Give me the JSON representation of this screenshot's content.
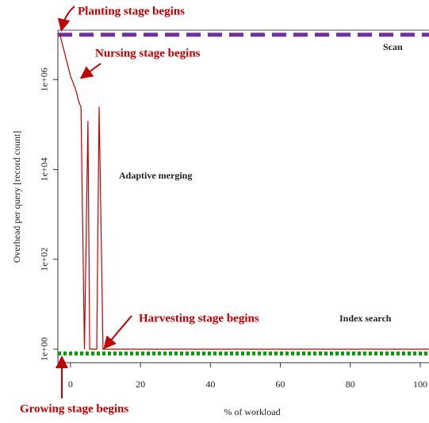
{
  "chart_data": {
    "type": "line",
    "y_label": "Overhead per query [record count]",
    "x_label": "% of workload",
    "log_y": true,
    "xlim": [
      -3.6,
      102.5
    ],
    "ylim": [
      0.5,
      12600000
    ],
    "xticks": [
      0,
      20,
      40,
      60,
      80,
      100
    ],
    "yticks": [
      {
        "value": 1,
        "label": "1e+00"
      },
      {
        "value": 100,
        "label": "1e+02"
      },
      {
        "value": 10000,
        "label": "1e+04"
      },
      {
        "value": 1000000,
        "label": "1e+06"
      }
    ],
    "series": [
      {
        "name": "Scan",
        "color": "#7030a0",
        "dash": "dashed",
        "x": [
          -3.6,
          102.5
        ],
        "values": [
          10000000,
          10000000
        ]
      },
      {
        "name": "Index search",
        "color": "#00a000",
        "dash": "dotted",
        "x": [
          -3.6,
          102.5
        ],
        "values": [
          0.8,
          0.8
        ]
      },
      {
        "name": "Adaptive merging",
        "color": "#c00000",
        "dash": "solid",
        "x": [
          -3,
          0,
          1.5,
          2.5,
          3,
          4,
          5,
          5.5,
          6.5,
          7.5,
          8.2,
          9.3,
          102.5
        ],
        "values": [
          10000000,
          1200000,
          600000,
          300000,
          250000,
          1,
          120000,
          1,
          1,
          1,
          250000,
          1,
          1
        ]
      }
    ],
    "annotations": [
      "Planting stage begins",
      "Nursing stage begins",
      "Harvesting stage begins",
      "Growing stage begins"
    ]
  }
}
